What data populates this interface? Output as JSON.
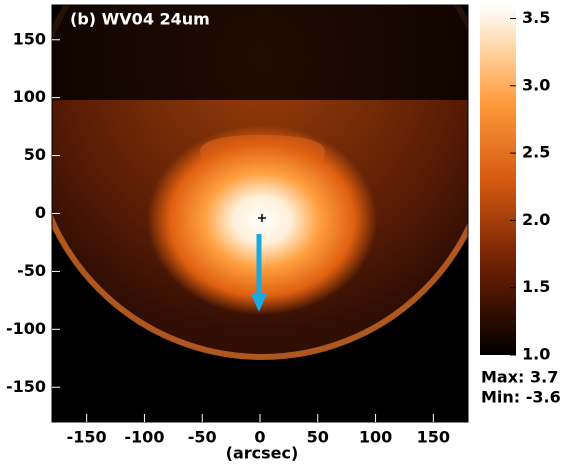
{
  "chart_data": {
    "type": "image",
    "title": "(b) WV04 24um",
    "x_label": "(arcsec)",
    "xlim": [
      -180,
      180
    ],
    "xticks": [
      -150,
      -100,
      -50,
      0,
      50,
      100,
      150
    ],
    "ylim": [
      -180,
      180
    ],
    "yticks": [
      -150,
      -100,
      -50,
      0,
      50,
      100,
      150
    ],
    "colorbar": {
      "lim": [
        1.0,
        3.6
      ],
      "ticks": [
        {
          "value": 1.0,
          "label": "1.0"
        },
        {
          "value": 1.5,
          "label": "1.5"
        },
        {
          "value": 2.0,
          "label": "2.0"
        },
        {
          "value": 2.5,
          "label": "2.5"
        },
        {
          "value": 3.0,
          "label": "3.0"
        },
        {
          "value": 3.5,
          "label": "3.5"
        }
      ]
    },
    "annotations": [
      "Max: 3.7",
      "Min: -3.6"
    ]
  }
}
